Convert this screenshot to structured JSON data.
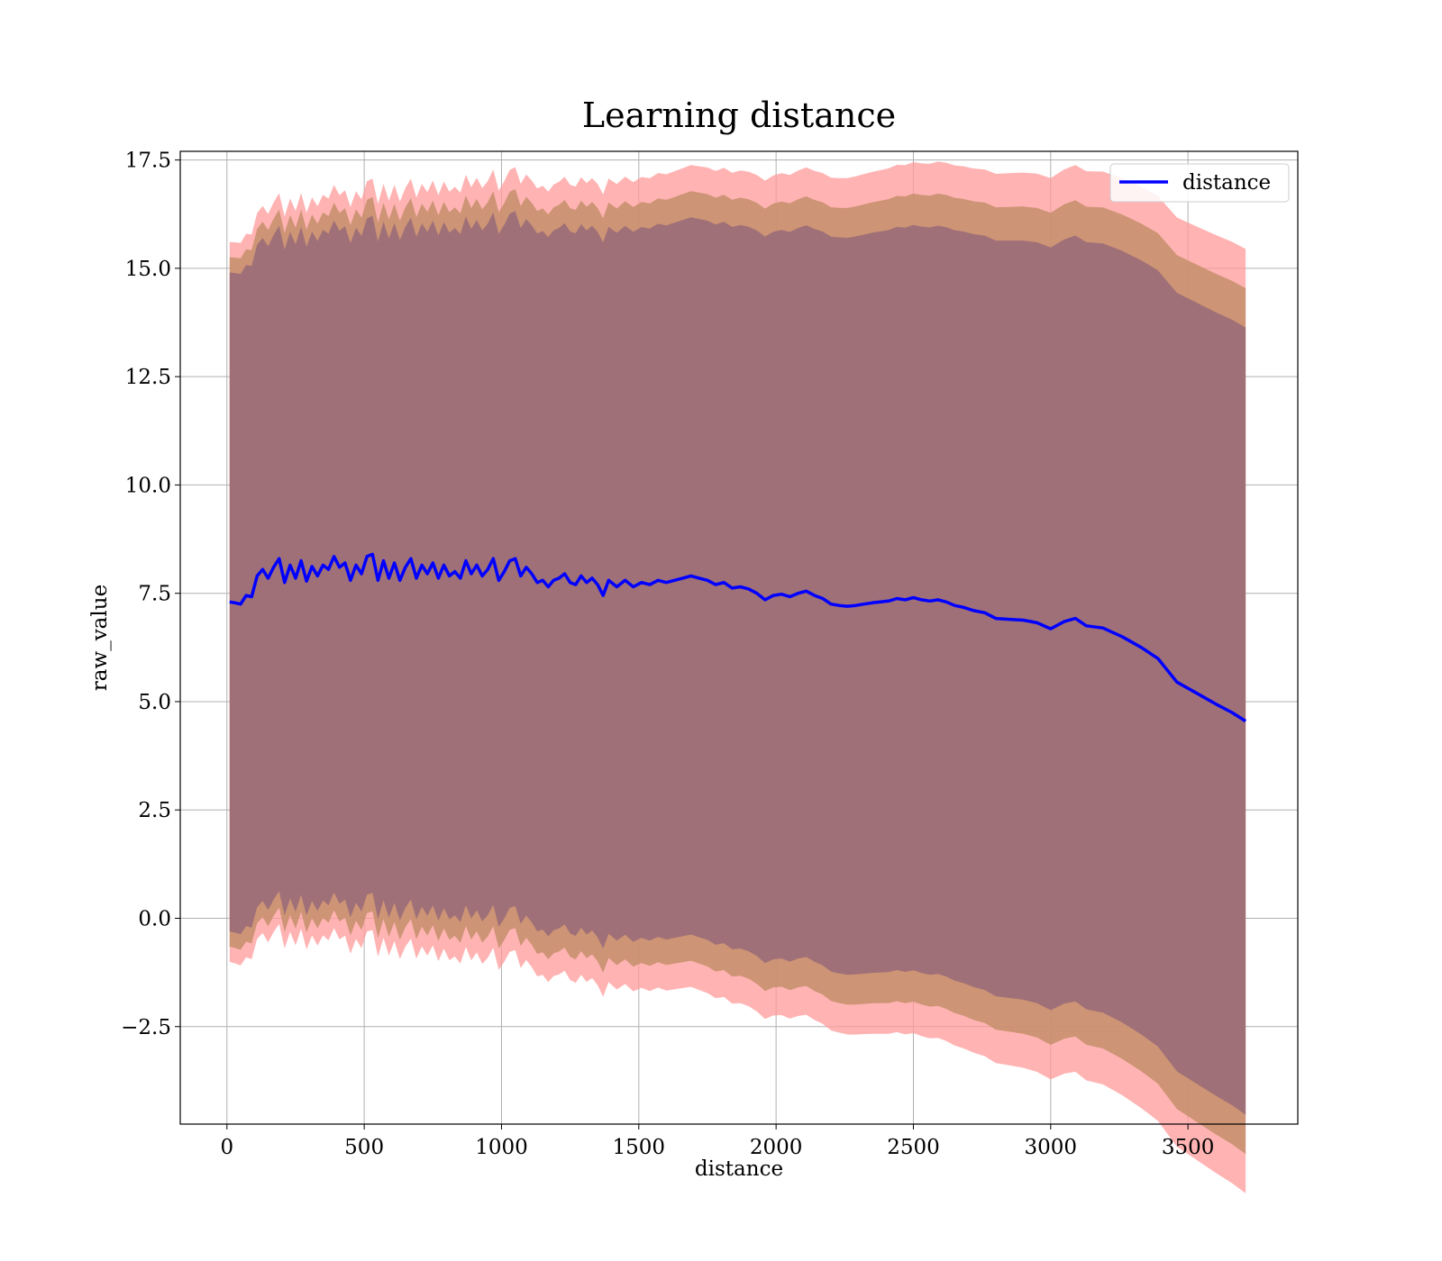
{
  "chart_data": {
    "type": "area",
    "title": "Learning distance",
    "xlabel": "distance",
    "ylabel": "raw_value",
    "xlim": [
      -170,
      3900
    ],
    "ylim": [
      -4.75,
      17.7
    ],
    "xticks": [
      0,
      500,
      1000,
      1500,
      2000,
      2500,
      3000,
      3500
    ],
    "yticks": [
      -2.5,
      0.0,
      2.5,
      5.0,
      7.5,
      10.0,
      12.5,
      15.0,
      17.5
    ],
    "ytick_labels": [
      "−2.5",
      "0.0",
      "2.5",
      "5.0",
      "7.5",
      "10.0",
      "12.5",
      "15.0",
      "17.5"
    ],
    "grid": true,
    "legend_position": "top-right",
    "colors": {
      "line": "#0000ff",
      "outer_band": "#ff9a9a",
      "middle_band": "#c8906e",
      "inner_band": "#a07078"
    },
    "series": [
      {
        "name": "distance",
        "x": [
          10,
          30,
          50,
          70,
          90,
          110,
          130,
          150,
          170,
          190,
          210,
          230,
          250,
          270,
          290,
          310,
          330,
          350,
          370,
          390,
          410,
          430,
          450,
          470,
          490,
          510,
          530,
          550,
          570,
          590,
          610,
          630,
          650,
          670,
          690,
          710,
          730,
          750,
          770,
          790,
          810,
          830,
          850,
          870,
          890,
          910,
          930,
          950,
          970,
          990,
          1010,
          1030,
          1050,
          1070,
          1090,
          1110,
          1130,
          1150,
          1170,
          1190,
          1210,
          1230,
          1250,
          1270,
          1290,
          1310,
          1330,
          1350,
          1370,
          1390,
          1420,
          1450,
          1480,
          1510,
          1540,
          1570,
          1600,
          1630,
          1660,
          1690,
          1720,
          1750,
          1780,
          1810,
          1840,
          1870,
          1900,
          1930,
          1960,
          1990,
          2020,
          2050,
          2080,
          2110,
          2140,
          2170,
          2200,
          2230,
          2260,
          2290,
          2320,
          2350,
          2380,
          2410,
          2440,
          2470,
          2500,
          2530,
          2560,
          2590,
          2620,
          2650,
          2680,
          2720,
          2760,
          2800,
          2850,
          2900,
          2950,
          3000,
          3050,
          3090,
          3130,
          3190,
          3260,
          3330,
          3390,
          3460,
          3530,
          3600,
          3660,
          3710
        ],
        "values": [
          7.3,
          7.28,
          7.25,
          7.45,
          7.42,
          7.9,
          8.05,
          7.85,
          8.1,
          8.3,
          7.75,
          8.15,
          7.85,
          8.25,
          7.78,
          8.12,
          7.9,
          8.15,
          8.05,
          8.35,
          8.1,
          8.2,
          7.8,
          8.15,
          7.95,
          8.35,
          8.4,
          7.8,
          8.25,
          7.85,
          8.2,
          7.8,
          8.1,
          8.3,
          7.85,
          8.15,
          7.95,
          8.2,
          7.85,
          8.15,
          7.9,
          8.0,
          7.85,
          8.25,
          7.95,
          8.15,
          7.9,
          8.05,
          8.3,
          7.8,
          8.0,
          8.25,
          8.3,
          7.9,
          8.1,
          7.95,
          7.75,
          7.8,
          7.65,
          7.8,
          7.85,
          7.95,
          7.75,
          7.7,
          7.9,
          7.75,
          7.85,
          7.7,
          7.45,
          7.8,
          7.65,
          7.8,
          7.65,
          7.75,
          7.7,
          7.8,
          7.75,
          7.8,
          7.85,
          7.9,
          7.85,
          7.8,
          7.7,
          7.75,
          7.62,
          7.65,
          7.6,
          7.5,
          7.35,
          7.45,
          7.48,
          7.42,
          7.5,
          7.55,
          7.45,
          7.38,
          7.25,
          7.22,
          7.2,
          7.22,
          7.25,
          7.28,
          7.3,
          7.32,
          7.38,
          7.35,
          7.4,
          7.35,
          7.32,
          7.35,
          7.3,
          7.22,
          7.18,
          7.1,
          7.05,
          6.92,
          6.9,
          6.88,
          6.82,
          6.68,
          6.85,
          6.92,
          6.75,
          6.7,
          6.5,
          6.25,
          6.0,
          5.45,
          5.2,
          4.95,
          4.75,
          4.55
        ]
      }
    ]
  }
}
